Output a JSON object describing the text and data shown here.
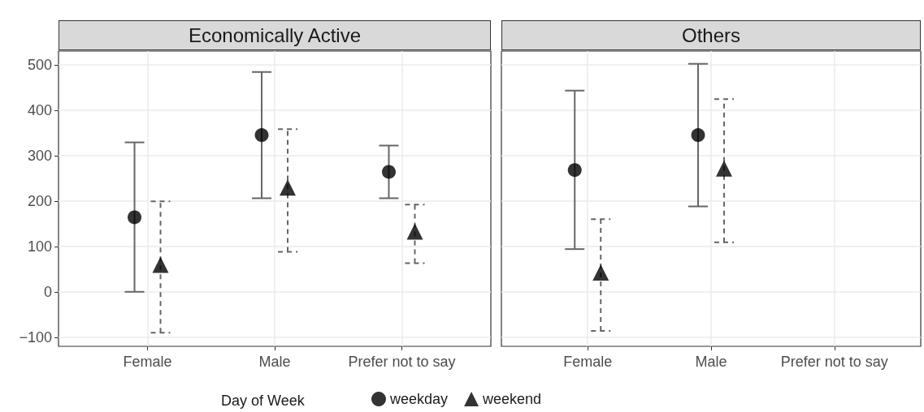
{
  "chart_data": [
    {
      "type": "scatter",
      "title": "Economically Active",
      "categories": [
        "Female",
        "Male",
        "Prefer not to say"
      ],
      "ylim": [
        -120,
        530
      ],
      "yticks": [
        -100,
        0,
        100,
        200,
        300,
        400,
        500
      ],
      "grid": true,
      "legend": "bottom",
      "legend_title": "Day of Week",
      "series": [
        {
          "name": "weekday",
          "color": "#000000",
          "marker": "circle",
          "line_style": "solid",
          "values": [
            164,
            345,
            264
          ],
          "errors": [
            [
              0,
              329
            ],
            [
              206,
              484
            ],
            [
              206,
              322
            ]
          ]
        },
        {
          "name": "weekend",
          "color": "#000000",
          "marker": "triangle",
          "line_style": "dashed",
          "values": [
            56,
            226,
            129
          ],
          "errors": [
            [
              -90,
              199
            ],
            [
              88,
              358
            ],
            [
              63,
              192
            ]
          ]
        }
      ]
    },
    {
      "type": "scatter",
      "title": "Others",
      "categories": [
        "Female",
        "Male",
        "Prefer not to say"
      ],
      "ylim": [
        -120,
        530
      ],
      "yticks": [
        -100,
        0,
        100,
        200,
        300,
        400,
        500
      ],
      "grid": true,
      "tick_labels": "x",
      "series": [
        {
          "name": "weekday",
          "color": "#000000",
          "marker": "circle",
          "line_style": "solid",
          "values": [
            268,
            345,
            null
          ],
          "errors": [
            [
              94,
              443
            ],
            [
              188,
              502
            ],
            null
          ]
        },
        {
          "name": "weekend",
          "color": "#000000",
          "marker": "triangle",
          "line_style": "dashed",
          "values": [
            39,
            268,
            null
          ],
          "errors": [
            [
              -86,
              160
            ],
            [
              109,
              424
            ],
            null
          ]
        }
      ]
    }
  ]
}
